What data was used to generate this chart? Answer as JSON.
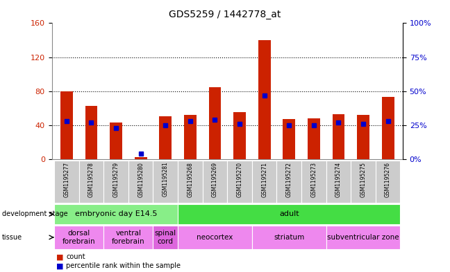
{
  "title": "GDS5259 / 1442778_at",
  "samples": [
    "GSM1195277",
    "GSM1195278",
    "GSM1195279",
    "GSM1195280",
    "GSM1195281",
    "GSM1195268",
    "GSM1195269",
    "GSM1195270",
    "GSM1195271",
    "GSM1195272",
    "GSM1195273",
    "GSM1195274",
    "GSM1195275",
    "GSM1195276"
  ],
  "counts": [
    80,
    63,
    43,
    2,
    50,
    52,
    85,
    55,
    140,
    47,
    48,
    53,
    52,
    73
  ],
  "percentiles": [
    28,
    27,
    23,
    4,
    25,
    28,
    29,
    26,
    47,
    25,
    25,
    27,
    26,
    28
  ],
  "ylim_left": [
    0,
    160
  ],
  "ylim_right": [
    0,
    100
  ],
  "yticks_left": [
    0,
    40,
    80,
    120,
    160
  ],
  "yticks_right": [
    0,
    25,
    50,
    75,
    100
  ],
  "ytick_labels_right": [
    "0%",
    "25%",
    "50%",
    "75%",
    "100%"
  ],
  "bar_color": "#cc2200",
  "dot_color": "#0000cc",
  "bg_color": "#ffffff",
  "tick_label_color_left": "#cc2200",
  "tick_label_color_right": "#0000cc",
  "dev_stage_groups": [
    {
      "label": "embryonic day E14.5",
      "start": 0,
      "end": 4,
      "color": "#88ee88"
    },
    {
      "label": "adult",
      "start": 5,
      "end": 13,
      "color": "#44dd44"
    }
  ],
  "tissue_groups": [
    {
      "label": "dorsal\nforebrain",
      "start": 0,
      "end": 1,
      "color": "#ee88ee"
    },
    {
      "label": "ventral\nforebrain",
      "start": 2,
      "end": 3,
      "color": "#ee88ee"
    },
    {
      "label": "spinal\ncord",
      "start": 4,
      "end": 4,
      "color": "#dd66dd"
    },
    {
      "label": "neocortex",
      "start": 5,
      "end": 7,
      "color": "#ee88ee"
    },
    {
      "label": "striatum",
      "start": 8,
      "end": 10,
      "color": "#ee88ee"
    },
    {
      "label": "subventricular zone",
      "start": 11,
      "end": 13,
      "color": "#ee88ee"
    }
  ],
  "legend_count_color": "#cc2200",
  "legend_pct_color": "#0000cc",
  "xticklabel_bg": "#cccccc",
  "title_fontsize": 10,
  "bar_fontsize": 6,
  "dev_fontsize": 8,
  "tissue_fontsize": 7.5,
  "legend_fontsize": 7
}
